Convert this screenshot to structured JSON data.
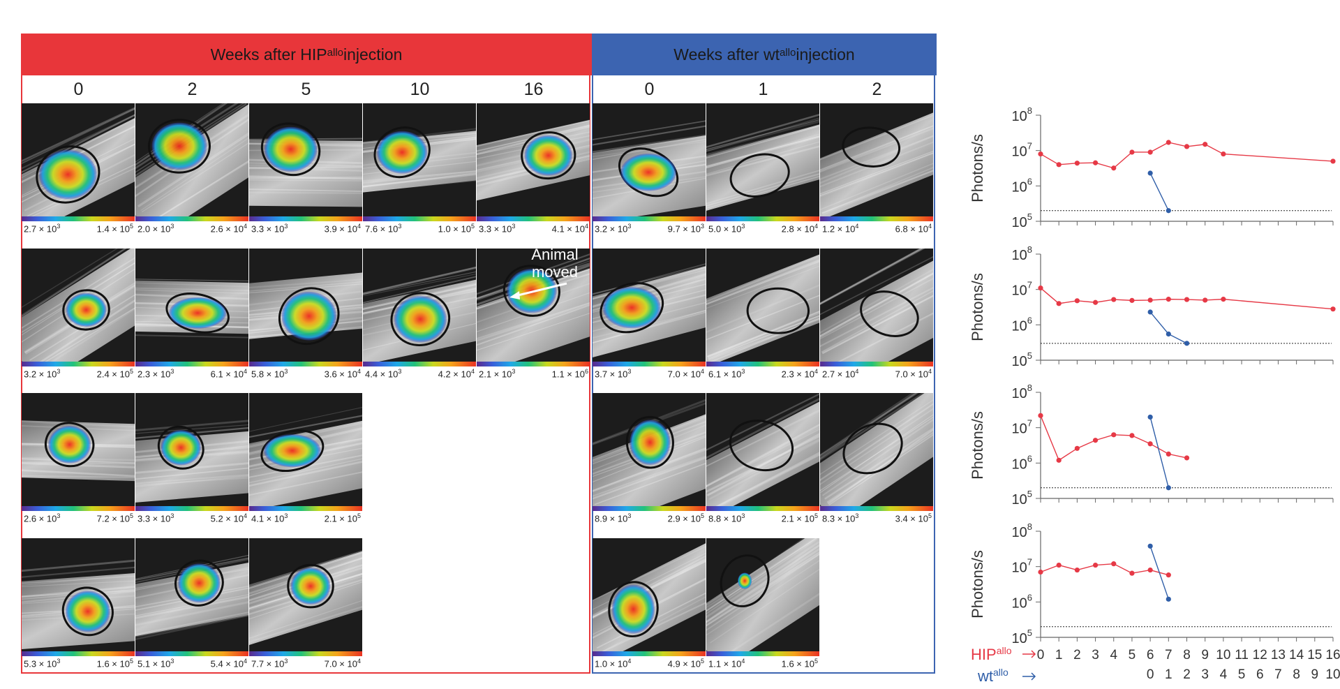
{
  "panels": {
    "hip": {
      "header": {
        "prefix": "Weeks after HIP",
        "sup": "allo",
        "suffix": " injection"
      },
      "weeks": [
        "0",
        "2",
        "5",
        "10",
        "16"
      ],
      "rows": [
        [
          {
            "lo": "2.7 × 10",
            "lo_exp": "3",
            "hi": "1.4 × 10",
            "hi_exp": "5"
          },
          {
            "lo": "2.0 × 10",
            "lo_exp": "3",
            "hi": "2.6 × 10",
            "hi_exp": "4"
          },
          {
            "lo": "3.3 × 10",
            "lo_exp": "3",
            "hi": "3.9 × 10",
            "hi_exp": "4"
          },
          {
            "lo": "7.6 × 10",
            "lo_exp": "3",
            "hi": "1.0 × 10",
            "hi_exp": "5"
          },
          {
            "lo": "3.3 × 10",
            "lo_exp": "3",
            "hi": "4.1 × 10",
            "hi_exp": "4"
          }
        ],
        [
          {
            "lo": "3.2 × 10",
            "lo_exp": "3",
            "hi": "2.4 × 10",
            "hi_exp": "5"
          },
          {
            "lo": "2.3 × 10",
            "lo_exp": "3",
            "hi": "6.1 × 10",
            "hi_exp": "4"
          },
          {
            "lo": "5.8 × 10",
            "lo_exp": "3",
            "hi": "3.6 × 10",
            "hi_exp": "4"
          },
          {
            "lo": "4.4 × 10",
            "lo_exp": "3",
            "hi": "4.2 × 10",
            "hi_exp": "4"
          },
          {
            "lo": "2.1 × 10",
            "lo_exp": "3",
            "hi": "1.1 × 10",
            "hi_exp": "6"
          }
        ],
        [
          {
            "lo": "2.6 × 10",
            "lo_exp": "3",
            "hi": "7.2 × 10",
            "hi_exp": "5"
          },
          {
            "lo": "3.3 × 10",
            "lo_exp": "3",
            "hi": "5.2 × 10",
            "hi_exp": "4"
          },
          {
            "lo": "4.1 × 10",
            "lo_exp": "3",
            "hi": "2.1 × 10",
            "hi_exp": "5"
          }
        ],
        [
          {
            "lo": "5.3 × 10",
            "lo_exp": "3",
            "hi": "1.6 × 10",
            "hi_exp": "5"
          },
          {
            "lo": "5.1 × 10",
            "lo_exp": "3",
            "hi": "5.4 × 10",
            "hi_exp": "4"
          },
          {
            "lo": "7.7 × 10",
            "lo_exp": "3",
            "hi": "7.0 × 10",
            "hi_exp": "4"
          }
        ]
      ],
      "annotation": [
        "Animal",
        "moved"
      ]
    },
    "wt": {
      "header": {
        "prefix": "Weeks after wt",
        "sup": "allo",
        "suffix": " injection"
      },
      "weeks": [
        "0",
        "1",
        "2"
      ],
      "rows": [
        [
          {
            "lo": "3.2 × 10",
            "lo_exp": "3",
            "hi": "9.7 × 10",
            "hi_exp": "3"
          },
          {
            "lo": "5.0 × 10",
            "lo_exp": "3",
            "hi": "2.8 × 10",
            "hi_exp": "4"
          },
          {
            "lo": "1.2 × 10",
            "lo_exp": "4",
            "hi": "6.8 × 10",
            "hi_exp": "4"
          }
        ],
        [
          {
            "lo": "3.7 × 10",
            "lo_exp": "3",
            "hi": "7.0 × 10",
            "hi_exp": "4"
          },
          {
            "lo": "6.1 × 10",
            "lo_exp": "3",
            "hi": "2.3 × 10",
            "hi_exp": "4"
          },
          {
            "lo": "2.7 × 10",
            "lo_exp": "4",
            "hi": "7.0 × 10",
            "hi_exp": "4"
          }
        ],
        [
          {
            "lo": "8.9 × 10",
            "lo_exp": "3",
            "hi": "2.9 × 10",
            "hi_exp": "5"
          },
          {
            "lo": "8.8 × 10",
            "lo_exp": "3",
            "hi": "2.1 × 10",
            "hi_exp": "5"
          },
          {
            "lo": "8.3 × 10",
            "lo_exp": "3",
            "hi": "3.4 × 10",
            "hi_exp": "5"
          }
        ],
        [
          {
            "lo": "1.0 × 10",
            "lo_exp": "4",
            "hi": "4.9 × 10",
            "hi_exp": "5"
          },
          {
            "lo": "1.1 × 10",
            "lo_exp": "4",
            "hi": "1.6 × 10",
            "hi_exp": "5"
          }
        ]
      ]
    }
  },
  "colors": {
    "hip": "#e8363a",
    "wt": "#3c64b1",
    "hip_line": "#e63946",
    "wt_line": "#2f5ea8"
  },
  "chart_data": {
    "type": "line",
    "yscale": "log",
    "ylabel": "Photons/s",
    "ylim": [
      100000,
      100000000
    ],
    "yticks": [
      "10",
      "10",
      "10",
      "10"
    ],
    "ytick_exps": [
      "5",
      "6",
      "7",
      "8"
    ],
    "x_hip_ticks": [
      "0",
      "1",
      "2",
      "3",
      "4",
      "5",
      "6",
      "7",
      "8",
      "9",
      "10",
      "11",
      "12",
      "13",
      "14",
      "15",
      "16"
    ],
    "x_wt_ticks": [
      "0",
      "1",
      "2",
      "3",
      "4",
      "5",
      "6",
      "7",
      "8",
      "9",
      "10"
    ],
    "legend": {
      "hip": "HIP",
      "wt": "wt",
      "sup": "allo"
    },
    "panels": [
      {
        "threshold": 200000,
        "series": [
          {
            "name": "HIP allo",
            "x": [
              0,
              1,
              2,
              3,
              4,
              5,
              6,
              7,
              8,
              9,
              10,
              16
            ],
            "y": [
              8000000,
              4000000,
              4400000,
              4500000,
              3200000,
              9000000,
              9000000,
              17000000,
              13000000,
              15000000,
              8000000,
              5000000
            ]
          },
          {
            "name": "wt allo",
            "x": [
              6,
              7
            ],
            "y": [
              2300000,
              200000
            ]
          }
        ]
      },
      {
        "threshold": 300000,
        "series": [
          {
            "name": "HIP allo",
            "x": [
              0,
              1,
              2,
              3,
              4,
              5,
              6,
              7,
              8,
              9,
              10,
              16
            ],
            "y": [
              11000000,
              4000000,
              4800000,
              4300000,
              5200000,
              4900000,
              5000000,
              5300000,
              5200000,
              5000000,
              5300000,
              2800000
            ]
          },
          {
            "name": "wt allo",
            "x": [
              6,
              7,
              8
            ],
            "y": [
              2300000,
              550000,
              300000
            ]
          }
        ]
      },
      {
        "threshold": 200000,
        "series": [
          {
            "name": "HIP allo",
            "x": [
              0,
              1,
              2,
              3,
              4,
              5,
              6,
              7,
              8
            ],
            "y": [
              22000000,
              1200000,
              2600000,
              4400000,
              6300000,
              6000000,
              3500000,
              1800000,
              1400000
            ]
          },
          {
            "name": "wt allo",
            "x": [
              6,
              7
            ],
            "y": [
              20000000,
              200000
            ]
          }
        ]
      },
      {
        "threshold": 200000,
        "series": [
          {
            "name": "HIP allo",
            "x": [
              0,
              1,
              2,
              3,
              4,
              5,
              6,
              7
            ],
            "y": [
              7000000,
              11000000,
              8000000,
              11000000,
              12000000,
              6500000,
              8000000,
              5800000
            ]
          },
          {
            "name": "wt allo",
            "x": [
              6,
              7
            ],
            "y": [
              38000000,
              1200000
            ]
          }
        ]
      }
    ]
  }
}
